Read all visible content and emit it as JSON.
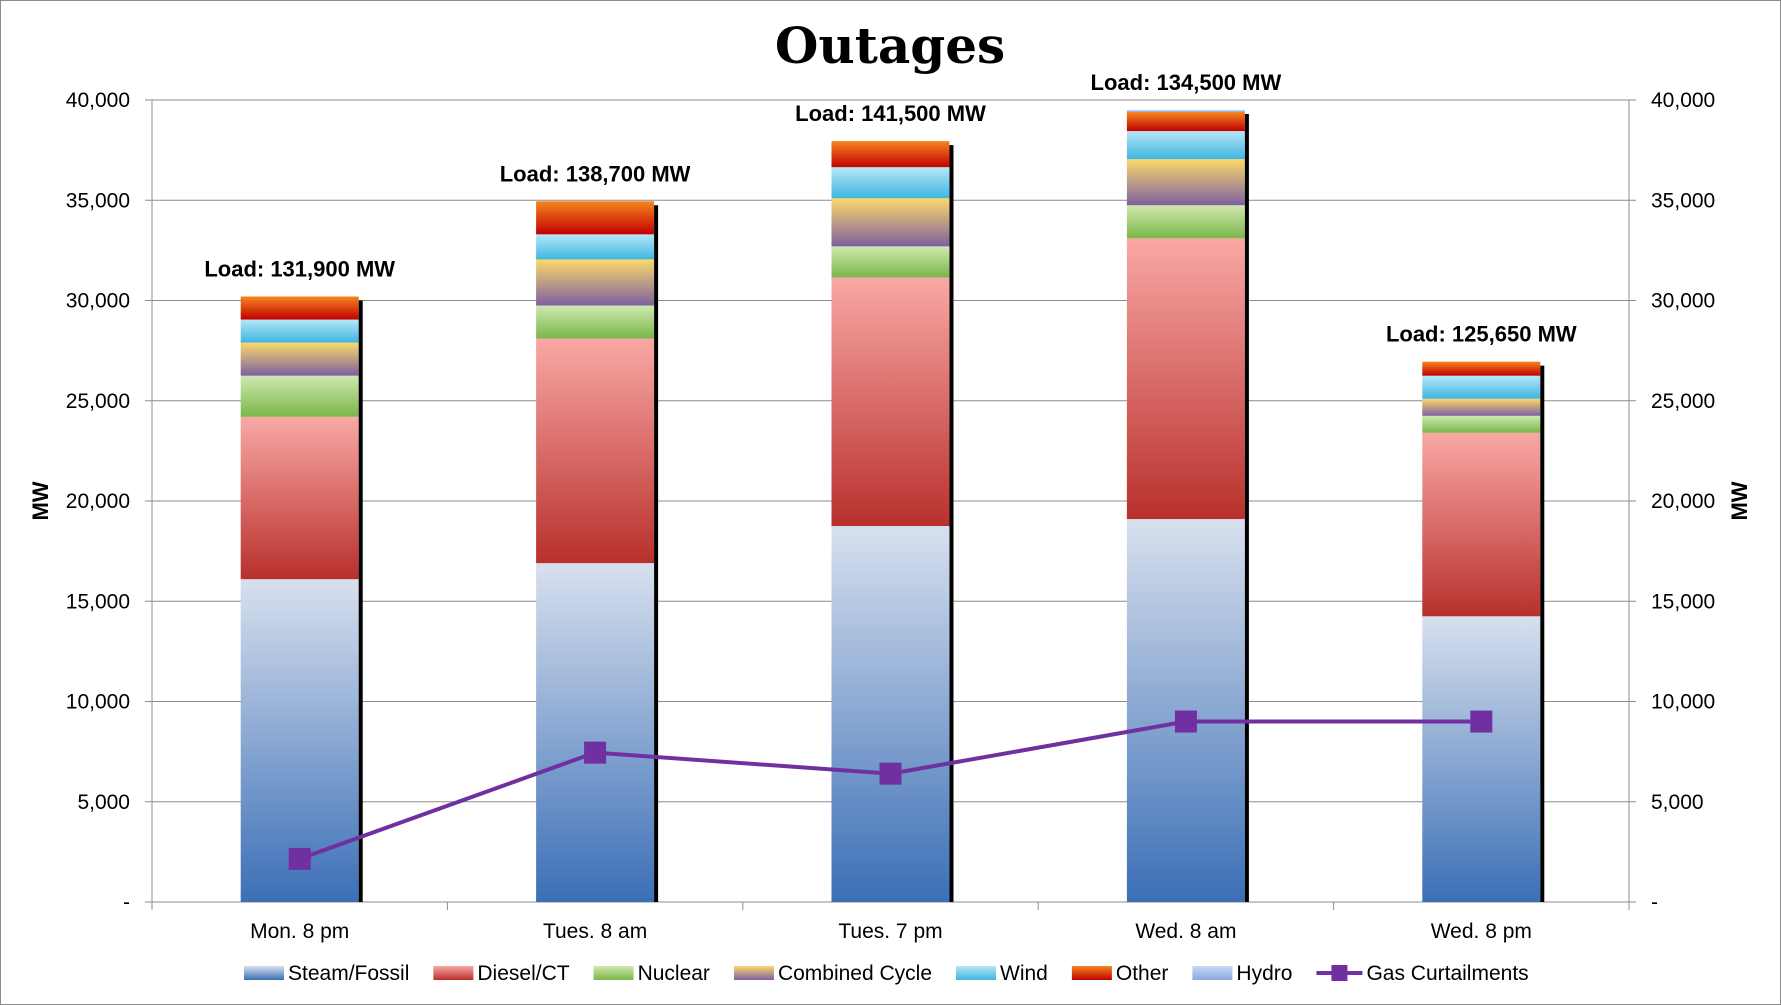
{
  "chart_data": {
    "type": "bar",
    "stacked": true,
    "title": "Outages",
    "ylabel_left": "MW",
    "ylabel_right": "MW",
    "ylim": [
      0,
      40000
    ],
    "y_ticks": [
      0,
      5000,
      10000,
      15000,
      20000,
      25000,
      30000,
      35000,
      40000
    ],
    "y_tick_labels": [
      "-",
      "5,000",
      "10,000",
      "15,000",
      "20,000",
      "25,000",
      "30,000",
      "35,000",
      "40,000"
    ],
    "categories": [
      "Mon. 8 pm",
      "Tues. 8 am",
      "Tues. 7 pm",
      "Wed. 8 am",
      "Wed. 8 pm"
    ],
    "load_labels": [
      "Load: 131,900 MW",
      "Load: 138,700 MW",
      "Load: 141,500 MW",
      "Load: 134,500 MW",
      "Load: 125,650 MW"
    ],
    "series": [
      {
        "name": "Steam/Fossil",
        "kind": "bar",
        "colors": [
          "#3b6fb6",
          "#d8e0ee"
        ],
        "values": [
          16100,
          16900,
          18750,
          19100,
          14250
        ]
      },
      {
        "name": "Diesel/CT",
        "kind": "bar",
        "colors": [
          "#b8302c",
          "#f9a8a5"
        ],
        "values": [
          8100,
          11200,
          12400,
          14000,
          9150
        ]
      },
      {
        "name": "Nuclear",
        "kind": "bar",
        "colors": [
          "#7ab648",
          "#cfe9b0"
        ],
        "values": [
          2050,
          1650,
          1550,
          1650,
          850
        ]
      },
      {
        "name": "Combined Cycle",
        "kind": "bar",
        "colors": [
          "#7e60a0",
          "#fbd96b"
        ],
        "values": [
          1650,
          2300,
          2400,
          2300,
          850
        ]
      },
      {
        "name": "Wind",
        "kind": "bar",
        "colors": [
          "#3eb6e0",
          "#b7e7f7"
        ],
        "values": [
          1150,
          1250,
          1550,
          1400,
          1150
        ]
      },
      {
        "name": "Other",
        "kind": "bar",
        "colors": [
          "#c00000",
          "#f6861f"
        ],
        "values": [
          1150,
          1650,
          1300,
          950,
          700
        ]
      },
      {
        "name": "Hydro",
        "kind": "bar",
        "colors": [
          "#8aa8e0",
          "#c9d8f5"
        ],
        "values": [
          0,
          0,
          0,
          100,
          0
        ]
      },
      {
        "name": "Gas Curtailments",
        "kind": "line",
        "color": "#7030a0",
        "values": [
          2150,
          7450,
          6400,
          9000,
          9000
        ]
      }
    ],
    "legend_position": "bottom",
    "grid": true
  }
}
